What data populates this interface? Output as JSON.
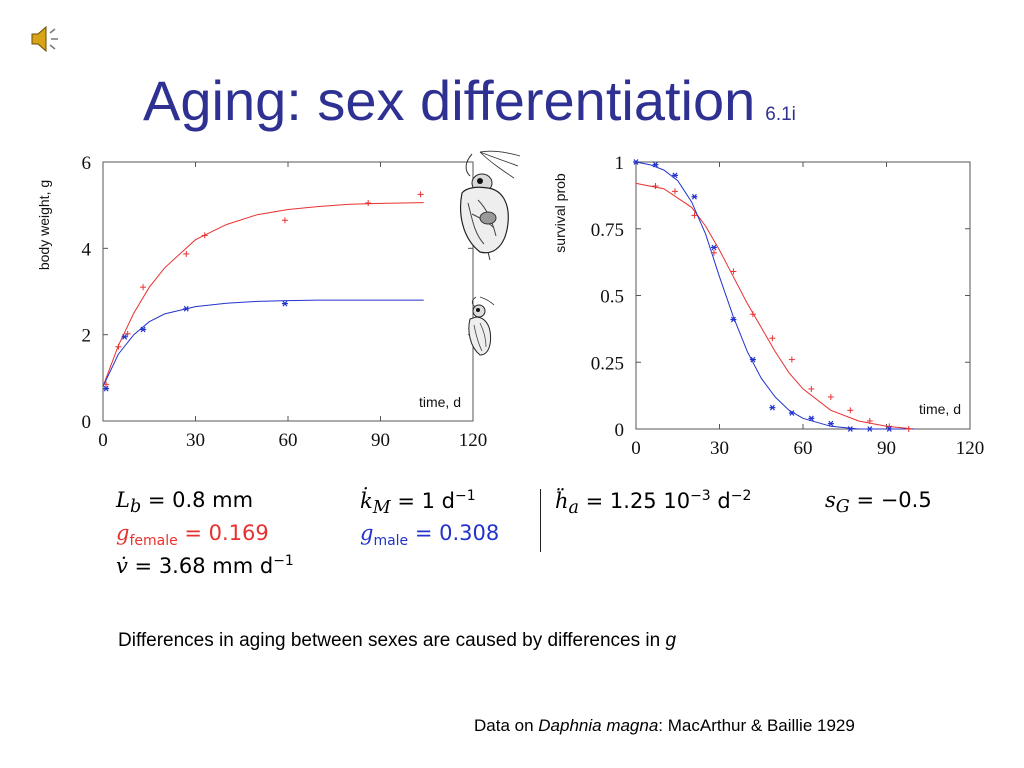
{
  "title": "Aging: sex differentiation",
  "slide_number": "6.1i",
  "speaker_icon": "speaker-icon",
  "colors": {
    "title": "#2e3192",
    "female": "#e8312f",
    "male": "#2233cc"
  },
  "chart_data": [
    {
      "type": "scatter",
      "ylabel": "body weight, g",
      "xlabel": "time, d",
      "xlim": [
        0,
        120
      ],
      "ylim": [
        0,
        6
      ],
      "xticks": [
        "0",
        "30",
        "60",
        "90",
        "120"
      ],
      "yticks": [
        "0",
        "2",
        "4",
        "6"
      ],
      "grid": false,
      "series": [
        {
          "color": "#e8312f",
          "marker": "+",
          "x": [
            1,
            5,
            8,
            13,
            27,
            33,
            59,
            86,
            103
          ],
          "y": [
            0.85,
            1.72,
            2.02,
            3.1,
            3.87,
            4.3,
            4.65,
            5.05,
            5.25
          ]
        },
        {
          "color": "#2233cc",
          "marker": "*",
          "x": [
            1,
            7,
            13,
            27,
            59
          ],
          "y": [
            0.75,
            1.95,
            2.12,
            2.6,
            2.72
          ]
        }
      ],
      "fits": [
        {
          "color": "#e8312f",
          "x": [
            0,
            5,
            10,
            15,
            20,
            30,
            40,
            50,
            60,
            70,
            80,
            90,
            104
          ],
          "y": [
            0.8,
            1.75,
            2.5,
            3.1,
            3.55,
            4.2,
            4.55,
            4.78,
            4.9,
            4.97,
            5.02,
            5.04,
            5.06
          ]
        },
        {
          "color": "#2233cc",
          "x": [
            0,
            5,
            10,
            15,
            20,
            30,
            40,
            50,
            60,
            70,
            80,
            90,
            104
          ],
          "y": [
            0.8,
            1.55,
            2.0,
            2.3,
            2.48,
            2.65,
            2.73,
            2.77,
            2.79,
            2.8,
            2.8,
            2.8,
            2.8
          ]
        }
      ]
    },
    {
      "type": "scatter",
      "ylabel": "survival prob",
      "xlabel": "time, d",
      "xlim": [
        0,
        120
      ],
      "ylim": [
        0,
        1
      ],
      "xticks": [
        "0",
        "30",
        "60",
        "90",
        "120"
      ],
      "yticks": [
        "0",
        "0.25",
        "0.5",
        "0.75",
        "1"
      ],
      "grid": false,
      "series": [
        {
          "color": "#e8312f",
          "marker": "+",
          "x": [
            7,
            14,
            21,
            28,
            35,
            42,
            49,
            56,
            63,
            70,
            77,
            84,
            91,
            98
          ],
          "y": [
            0.91,
            0.89,
            0.8,
            0.66,
            0.59,
            0.43,
            0.34,
            0.26,
            0.15,
            0.12,
            0.07,
            0.03,
            0.01,
            0.0
          ]
        },
        {
          "color": "#2233cc",
          "marker": "*",
          "x": [
            0,
            7,
            14,
            21,
            28,
            35,
            42,
            49,
            56,
            63,
            70,
            77,
            84,
            91
          ],
          "y": [
            1.0,
            0.99,
            0.95,
            0.87,
            0.68,
            0.41,
            0.26,
            0.08,
            0.06,
            0.04,
            0.02,
            0.0,
            0.0,
            0.0
          ]
        }
      ],
      "fits": [
        {
          "color": "#e8312f",
          "x": [
            0,
            10,
            20,
            25,
            30,
            35,
            40,
            45,
            50,
            55,
            60,
            70,
            80,
            90,
            100
          ],
          "y": [
            0.92,
            0.9,
            0.83,
            0.76,
            0.67,
            0.57,
            0.47,
            0.38,
            0.29,
            0.21,
            0.15,
            0.07,
            0.03,
            0.01,
            0.0
          ]
        },
        {
          "color": "#2233cc",
          "x": [
            0,
            5,
            10,
            15,
            20,
            25,
            30,
            35,
            40,
            45,
            50,
            55,
            60,
            70,
            80,
            90,
            100
          ],
          "y": [
            1.0,
            0.99,
            0.97,
            0.93,
            0.85,
            0.73,
            0.57,
            0.42,
            0.29,
            0.19,
            0.12,
            0.07,
            0.04,
            0.01,
            0.0,
            0.0,
            0.0
          ]
        }
      ]
    }
  ],
  "equations": {
    "Lb_sym": "L",
    "Lb_sub": "b",
    "Lb_val": " = 0.8 mm",
    "kM_sym": "k̇",
    "kM_sub": "M",
    "kM_val": " = 1 d",
    "kM_exp": "−1",
    "ha_sym": "ḧ",
    "ha_sub": "a",
    "ha_val": " = 1.25 10",
    "ha_exp1": "−3",
    "ha_val2": " d",
    "ha_exp2": "−2",
    "sG_sym": "s",
    "sG_sub": "G",
    "sG_val": " = −0.5",
    "gf_sym": "g",
    "gf_sub": "female",
    "gf_val": " = 0.169",
    "gm_sym": "g",
    "gm_sub": "male",
    "gm_val": " = 0.308",
    "v_sym": "v̇",
    "v_val": " = 3.68 mm d",
    "v_exp": "−1"
  },
  "caption_main": "Differences in aging between sexes are caused by differences in ",
  "caption_var": "g",
  "source_prefix": "Data on ",
  "source_species": "Daphnia magna",
  "source_suffix": ": MacArthur & Baillie 1929"
}
